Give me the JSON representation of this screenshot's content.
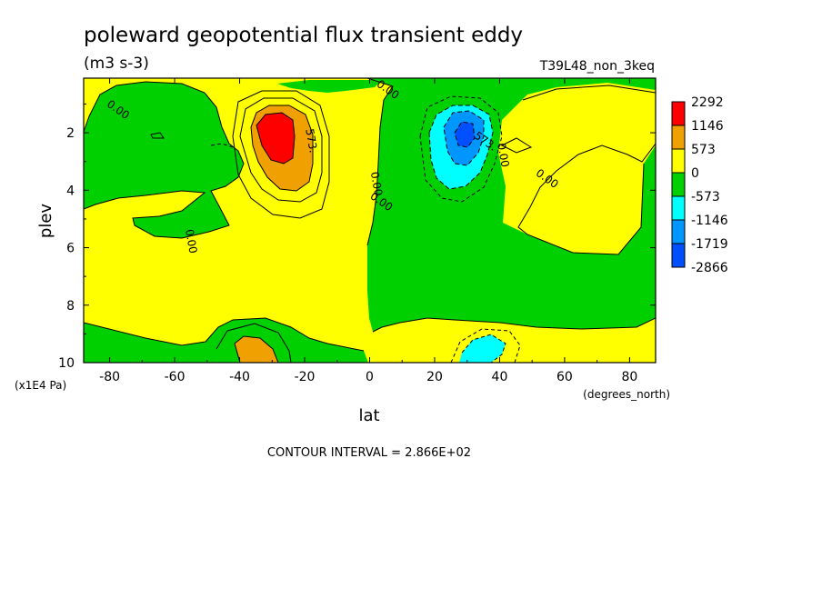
{
  "chart_data": {
    "type": "heatmap",
    "title": "poleward geopotential flux transient eddy",
    "units": "(m3 s-3)",
    "run_label": "T39L48_non_3keq",
    "xlabel": "lat",
    "xunit": "(degrees_north)",
    "ylabel": "plev",
    "yunit": "(x1E4 Pa)",
    "xlim": [
      -88,
      88
    ],
    "ylim": [
      10,
      0.1
    ],
    "x_ticks": [
      -80,
      -60,
      -40,
      -20,
      0,
      20,
      40,
      60,
      80
    ],
    "y_ticks": [
      2,
      4,
      6,
      8,
      10
    ],
    "contour_interval_label": "CONTOUR INTERVAL = 2.866E+02",
    "contour_labels": [
      {
        "text": "0.00",
        "lat": -78,
        "plev": 1.3
      },
      {
        "text": "0.00",
        "lat": -56,
        "plev": 5.8
      },
      {
        "text": "0.00",
        "lat": 5,
        "plev": 0.6
      },
      {
        "text": "0.00",
        "lat": 1,
        "plev": 3.8
      },
      {
        "text": "0.00",
        "lat": 3,
        "plev": 4.5
      },
      {
        "text": "573.",
        "lat": -19,
        "plev": 2.3
      },
      {
        "text": "573.",
        "lat": 35,
        "plev": 2.4
      },
      {
        "text": "0.00",
        "lat": 40,
        "plev": 2.8
      },
      {
        "text": "0.00",
        "lat": 54,
        "plev": 3.7
      }
    ],
    "colorbar": {
      "labels": [
        "2292",
        "1146",
        "573",
        "0",
        "-573",
        "-1146",
        "-1719",
        "-2866"
      ],
      "colors": [
        "#ff0000",
        "#f0a000",
        "#ffff00",
        "#00d000",
        "#00ffff",
        "#0096ff",
        "#0050ff"
      ]
    },
    "level_colors": {
      "pos3": "#ff0000",
      "pos2": "#f0a000",
      "pos1": "#ffff00",
      "neg1": "#00d000",
      "neg2": "#00ffff",
      "neg3": "#0096ff",
      "neg4": "#0050ff"
    }
  }
}
